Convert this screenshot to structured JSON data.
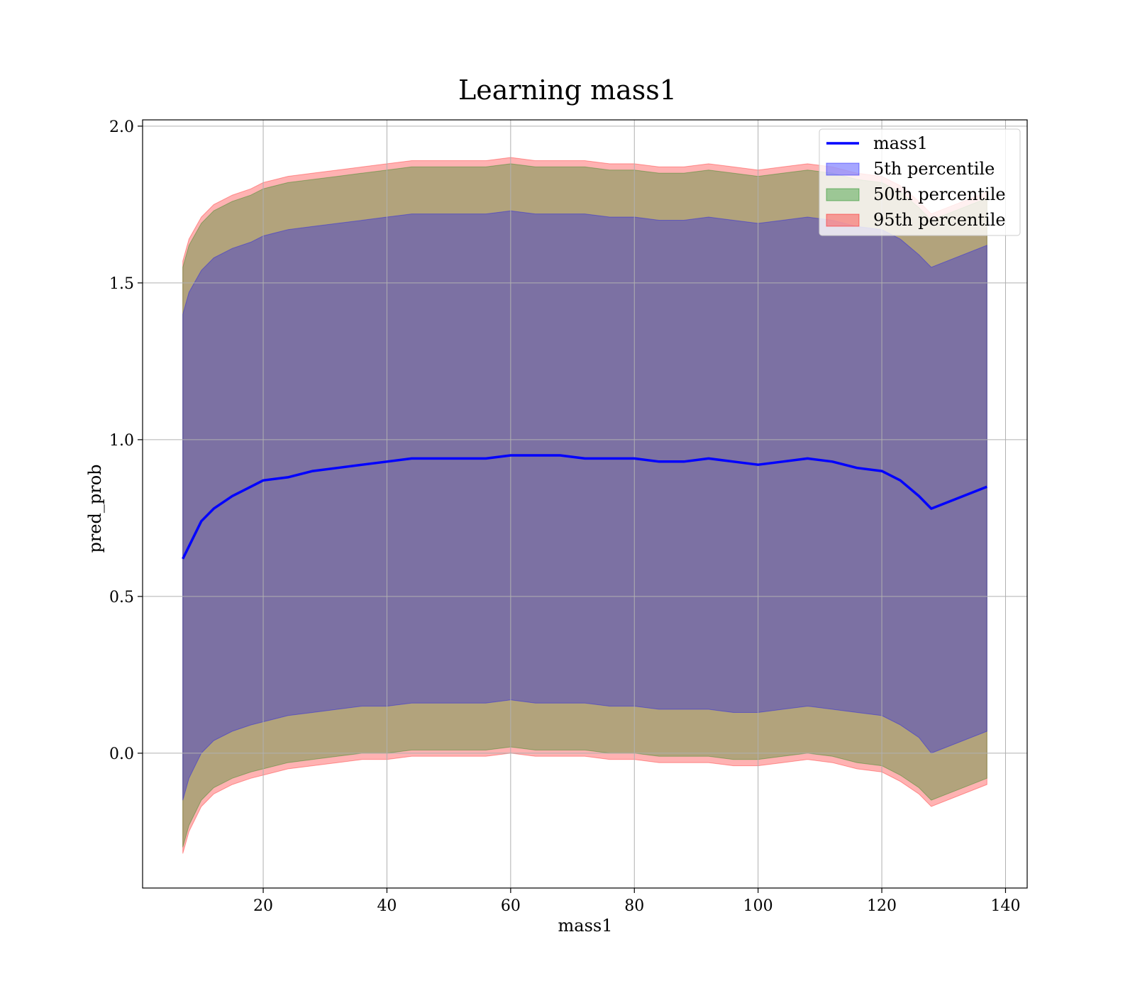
{
  "chart_data": {
    "type": "line",
    "title": "Learning mass1",
    "xlabel": "mass1",
    "ylabel": "pred_prob",
    "xlim": [
      0.5,
      143.5
    ],
    "ylim": [
      -0.43,
      2.02
    ],
    "xticks": [
      20,
      40,
      60,
      80,
      100,
      120,
      140
    ],
    "yticks": [
      0.0,
      0.5,
      1.0,
      1.5,
      2.0
    ],
    "ytick_labels": [
      "0.0",
      "0.5",
      "1.0",
      "1.5",
      "2.0"
    ],
    "grid": true,
    "legend_position": "upper right",
    "x": [
      7,
      8,
      10,
      12,
      15,
      18,
      20,
      24,
      28,
      32,
      36,
      40,
      44,
      48,
      52,
      56,
      60,
      64,
      68,
      72,
      76,
      80,
      84,
      88,
      92,
      96,
      100,
      104,
      108,
      112,
      116,
      120,
      123,
      126,
      128,
      137
    ],
    "series": [
      {
        "name": "mass1",
        "kind": "line",
        "color": "#0000ff",
        "values": [
          0.62,
          0.66,
          0.74,
          0.78,
          0.82,
          0.85,
          0.87,
          0.88,
          0.9,
          0.91,
          0.92,
          0.93,
          0.94,
          0.94,
          0.94,
          0.94,
          0.95,
          0.95,
          0.95,
          0.94,
          0.94,
          0.94,
          0.93,
          0.93,
          0.94,
          0.93,
          0.92,
          0.93,
          0.94,
          0.93,
          0.91,
          0.9,
          0.87,
          0.82,
          0.78,
          0.85
        ]
      },
      {
        "name": "5th percentile",
        "kind": "band",
        "color": "#0000ff",
        "lower": [
          -0.15,
          -0.08,
          0.0,
          0.04,
          0.07,
          0.09,
          0.1,
          0.12,
          0.13,
          0.14,
          0.15,
          0.15,
          0.16,
          0.16,
          0.16,
          0.16,
          0.17,
          0.16,
          0.16,
          0.16,
          0.15,
          0.15,
          0.14,
          0.14,
          0.14,
          0.13,
          0.13,
          0.14,
          0.15,
          0.14,
          0.13,
          0.12,
          0.09,
          0.05,
          0.0,
          0.07
        ],
        "upper": [
          1.4,
          1.47,
          1.54,
          1.58,
          1.61,
          1.63,
          1.65,
          1.67,
          1.68,
          1.69,
          1.7,
          1.71,
          1.72,
          1.72,
          1.72,
          1.72,
          1.73,
          1.72,
          1.72,
          1.72,
          1.71,
          1.71,
          1.7,
          1.7,
          1.71,
          1.7,
          1.69,
          1.7,
          1.71,
          1.7,
          1.68,
          1.67,
          1.64,
          1.59,
          1.55,
          1.62
        ]
      },
      {
        "name": "50th percentile",
        "kind": "band",
        "color": "#008000",
        "lower": [
          -0.3,
          -0.23,
          -0.15,
          -0.11,
          -0.08,
          -0.06,
          -0.05,
          -0.03,
          -0.02,
          -0.01,
          0.0,
          0.0,
          0.01,
          0.01,
          0.01,
          0.01,
          0.02,
          0.01,
          0.01,
          0.01,
          0.0,
          0.0,
          -0.01,
          -0.01,
          -0.01,
          -0.02,
          -0.02,
          -0.01,
          0.0,
          -0.01,
          -0.03,
          -0.04,
          -0.07,
          -0.11,
          -0.15,
          -0.08
        ],
        "upper": [
          1.55,
          1.62,
          1.69,
          1.73,
          1.76,
          1.78,
          1.8,
          1.82,
          1.83,
          1.84,
          1.85,
          1.86,
          1.87,
          1.87,
          1.87,
          1.87,
          1.88,
          1.87,
          1.87,
          1.87,
          1.86,
          1.86,
          1.85,
          1.85,
          1.86,
          1.85,
          1.84,
          1.85,
          1.86,
          1.85,
          1.83,
          1.82,
          1.79,
          1.74,
          1.7,
          1.77
        ]
      },
      {
        "name": "95th percentile",
        "kind": "band",
        "color": "#ff0000",
        "lower": [
          -0.32,
          -0.25,
          -0.17,
          -0.13,
          -0.1,
          -0.08,
          -0.07,
          -0.05,
          -0.04,
          -0.03,
          -0.02,
          -0.02,
          -0.01,
          -0.01,
          -0.01,
          -0.01,
          0.0,
          -0.01,
          -0.01,
          -0.01,
          -0.02,
          -0.02,
          -0.03,
          -0.03,
          -0.03,
          -0.04,
          -0.04,
          -0.03,
          -0.02,
          -0.03,
          -0.05,
          -0.06,
          -0.09,
          -0.13,
          -0.17,
          -0.1
        ],
        "upper": [
          1.57,
          1.64,
          1.71,
          1.75,
          1.78,
          1.8,
          1.82,
          1.84,
          1.85,
          1.86,
          1.87,
          1.88,
          1.89,
          1.89,
          1.89,
          1.89,
          1.9,
          1.89,
          1.89,
          1.89,
          1.88,
          1.88,
          1.87,
          1.87,
          1.88,
          1.87,
          1.86,
          1.87,
          1.88,
          1.87,
          1.85,
          1.84,
          1.81,
          1.76,
          1.72,
          1.79
        ]
      }
    ]
  }
}
